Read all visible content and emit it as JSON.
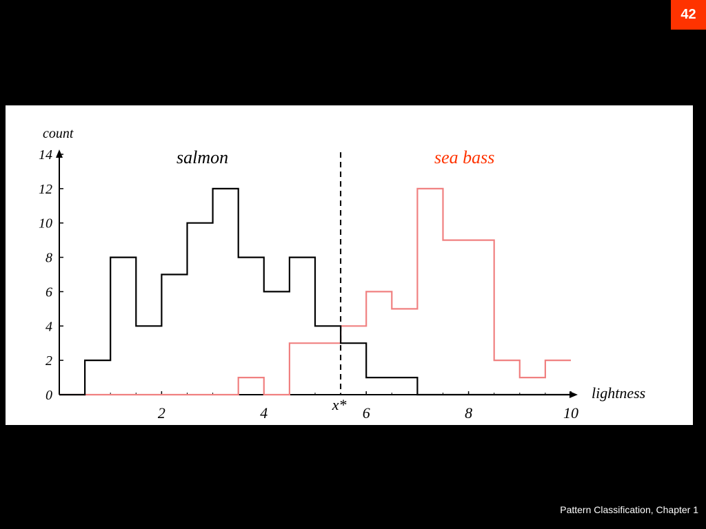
{
  "slide": {
    "page_number": "42",
    "footer": "Pattern Classification, Chapter 1"
  },
  "colors": {
    "background": "#000000",
    "page_badge": "#ff3300",
    "salmon_series": "#000000",
    "sea_bass_series": "#f08080"
  },
  "chart_data": {
    "type": "line",
    "step": true,
    "title": "",
    "xlabel": "lightness",
    "ylabel": "count",
    "xlim": [
      0,
      10
    ],
    "ylim": [
      0,
      14
    ],
    "x_ticks": [
      "2",
      "4",
      "6",
      "8",
      "10"
    ],
    "y_ticks": [
      "0",
      "2",
      "4",
      "6",
      "8",
      "10",
      "12",
      "14"
    ],
    "grid": false,
    "threshold": {
      "label": "x*",
      "x": 5.5
    },
    "series": [
      {
        "name": "salmon",
        "color": "#000000",
        "bin_edges": [
          0.5,
          1.0,
          1.5,
          2.0,
          2.5,
          3.0,
          3.5,
          4.0,
          4.5,
          5.0,
          5.5,
          6.0,
          6.5,
          7.0
        ],
        "counts": [
          2,
          8,
          4,
          7,
          10,
          12,
          8,
          6,
          8,
          4,
          3,
          1,
          1
        ]
      },
      {
        "name": "sea bass",
        "color": "#f08080",
        "bin_edges": [
          3.5,
          4.0,
          4.5,
          5.0,
          5.5,
          6.0,
          6.5,
          7.0,
          7.5,
          8.0,
          8.5,
          9.0,
          9.5,
          10.0
        ],
        "counts": [
          1,
          0,
          3,
          3,
          4,
          6,
          5,
          12,
          9,
          9,
          2,
          1,
          2
        ]
      }
    ]
  }
}
